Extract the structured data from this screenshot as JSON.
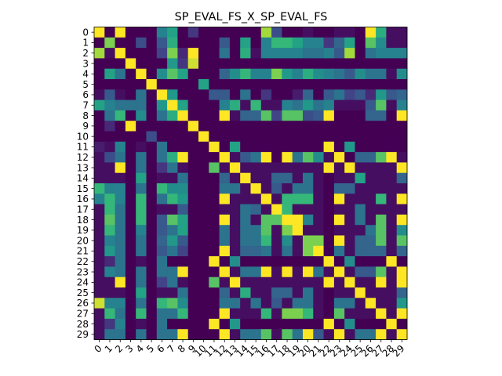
{
  "chart_data": {
    "type": "heatmap",
    "title": "SP_EVAL_FS_X_SP_EVAL_FS",
    "xlabel": "",
    "ylabel": "",
    "x_ticks": [
      "0",
      "1",
      "2",
      "3",
      "4",
      "5",
      "6",
      "7",
      "8",
      "9",
      "10",
      "11",
      "12",
      "13",
      "14",
      "15",
      "16",
      "17",
      "18",
      "19",
      "20",
      "21",
      "22",
      "23",
      "24",
      "25",
      "26",
      "27",
      "28",
      "29"
    ],
    "y_ticks": [
      "0",
      "1",
      "2",
      "3",
      "4",
      "5",
      "6",
      "7",
      "8",
      "9",
      "10",
      "11",
      "12",
      "13",
      "14",
      "15",
      "16",
      "17",
      "18",
      "19",
      "20",
      "21",
      "22",
      "23",
      "24",
      "25",
      "26",
      "27",
      "28",
      "29"
    ],
    "colormap": "viridis",
    "value_range": [
      0,
      1
    ],
    "grid": false,
    "legend": "none",
    "matrix": [
      [
        1,
        0,
        1,
        0,
        0,
        0,
        0.5,
        0.65,
        0,
        0.2,
        0,
        0,
        0,
        0,
        0,
        0,
        0.9,
        0.3,
        0,
        0,
        0.05,
        0,
        0,
        0.05,
        0.05,
        0,
        1,
        0.7,
        0.05,
        0.05
      ],
      [
        0,
        0.85,
        0,
        0,
        0.3,
        0,
        0.35,
        0.7,
        0,
        0,
        0,
        0,
        0.35,
        0,
        0.65,
        0,
        0.5,
        0.75,
        0.75,
        0.65,
        0.5,
        0.5,
        0.2,
        0.4,
        0.65,
        0,
        0.8,
        0.55,
        0.05,
        0.05
      ],
      [
        0.9,
        0.05,
        1,
        0,
        0,
        0,
        0.25,
        0.85,
        0.15,
        1,
        0,
        0,
        0.45,
        0,
        0.7,
        0.05,
        0.5,
        0.5,
        0.5,
        0.5,
        0.45,
        0.45,
        0.5,
        0.35,
        0.9,
        0,
        0.45,
        0.5,
        0.5,
        0.5
      ],
      [
        0,
        0,
        0,
        1,
        0,
        0,
        0,
        0.6,
        0.2,
        0.95,
        0,
        0,
        0,
        0,
        0,
        0,
        0,
        0,
        0,
        0,
        0,
        0,
        0,
        0,
        0,
        0,
        0,
        0,
        0,
        0
      ],
      [
        0,
        0.65,
        0.45,
        0,
        1,
        0,
        0.55,
        0.8,
        0.65,
        0,
        0,
        0,
        0.4,
        0.55,
        0.75,
        0.5,
        0.5,
        0.85,
        0.6,
        0.5,
        0.7,
        0.55,
        0.5,
        0.45,
        0.35,
        0.55,
        0.45,
        0.45,
        0.05,
        0.55
      ],
      [
        0,
        0,
        0,
        0,
        0,
        1,
        0,
        0,
        0,
        0,
        0.65,
        0,
        0,
        0,
        0,
        0,
        0,
        0,
        0,
        0,
        0,
        0,
        0,
        0,
        0,
        0,
        0,
        0,
        0,
        0
      ],
      [
        0.05,
        0.35,
        0.05,
        0,
        0.45,
        0,
        1,
        0.6,
        0,
        0,
        0,
        0.35,
        0.35,
        0,
        0.45,
        0,
        0.2,
        0,
        0,
        0.1,
        0.4,
        0,
        0.35,
        0.45,
        0.25,
        0.35,
        0.15,
        0.6,
        0.35,
        0.4
      ],
      [
        0.65,
        0.5,
        0.45,
        0.45,
        0.45,
        0,
        0.6,
        1,
        0.65,
        0,
        0,
        0,
        0.5,
        0.7,
        0.05,
        0.75,
        0.05,
        0.05,
        0.5,
        0.45,
        0.6,
        0.45,
        0.5,
        0.05,
        0.05,
        0.05,
        0.35,
        0.8,
        0.05,
        0.5
      ],
      [
        0,
        0.45,
        0.75,
        0,
        0.55,
        0,
        0.45,
        0.7,
        1,
        0,
        0,
        0,
        1,
        0.05,
        0.4,
        0.4,
        0.8,
        0.25,
        0.8,
        0.8,
        0.3,
        0.35,
        1,
        0,
        0,
        0,
        0.4,
        0.4,
        0,
        1
      ],
      [
        0,
        0.15,
        0,
        1,
        0,
        0,
        0,
        0,
        0,
        1,
        0,
        0,
        0,
        0,
        0,
        0,
        0,
        0,
        0,
        0,
        0,
        0,
        0,
        0,
        0,
        0,
        0,
        0,
        0,
        0
      ],
      [
        0,
        0,
        0,
        0,
        0,
        0.3,
        0,
        0,
        0,
        0,
        1,
        0,
        0,
        0,
        0,
        0,
        0,
        0,
        0,
        0,
        0,
        0,
        0,
        0,
        0,
        0,
        0,
        0,
        0,
        0
      ],
      [
        0.1,
        0.05,
        0.5,
        0,
        0.05,
        0,
        0.45,
        0,
        0,
        0,
        0,
        1,
        0,
        0.65,
        0,
        0,
        0,
        0,
        0,
        0,
        0,
        0,
        1,
        0,
        0.6,
        0,
        0,
        0,
        0,
        0
      ],
      [
        0.05,
        0.3,
        0.45,
        0,
        0.45,
        0,
        0.45,
        0.7,
        1,
        0,
        0,
        0,
        1,
        0.05,
        0.35,
        0.45,
        1,
        0,
        1,
        0.45,
        0.8,
        0.55,
        0.05,
        1,
        0,
        0.4,
        0.4,
        0.8,
        1,
        0.05
      ],
      [
        0.05,
        0.05,
        1,
        0,
        0.45,
        0,
        0.2,
        0.45,
        0.05,
        0,
        0,
        0.8,
        0.05,
        1,
        0.05,
        0.05,
        0.05,
        0.05,
        0.05,
        0.05,
        0.05,
        0.05,
        1,
        0.05,
        1,
        0.05,
        0.05,
        0.05,
        0.05,
        1
      ],
      [
        0.05,
        0.05,
        0.05,
        0,
        0.65,
        0,
        0.05,
        0.05,
        0.45,
        0,
        0,
        0,
        0.4,
        0.05,
        1,
        0.05,
        0.05,
        0.4,
        0.4,
        0.05,
        0.45,
        0.05,
        0,
        0.05,
        0.05,
        0.65,
        0.05,
        0.05,
        0.05,
        0.4
      ],
      [
        0.75,
        0.5,
        0.5,
        0,
        0.45,
        0,
        0.75,
        0.55,
        0.55,
        0,
        0,
        0,
        0.45,
        0.45,
        0.05,
        1,
        0.05,
        0.35,
        0.05,
        0.45,
        0.45,
        0.05,
        0,
        0.4,
        0.4,
        0.05,
        0.05,
        0.05,
        0.05,
        0.05
      ],
      [
        0.5,
        0.75,
        0.5,
        0,
        0.75,
        0,
        0.45,
        0.75,
        0.6,
        0,
        0,
        0,
        1,
        0.05,
        0.05,
        0.05,
        1,
        0.05,
        0.75,
        0.75,
        0.75,
        0.05,
        0,
        1,
        0.05,
        0.05,
        0.05,
        0.75,
        0.05,
        1
      ],
      [
        0.05,
        0.75,
        0.45,
        0,
        0.75,
        0,
        0.05,
        0.05,
        0.35,
        0,
        0,
        0,
        0.05,
        0.05,
        0.45,
        0.4,
        0.05,
        1,
        0.75,
        0.05,
        0.05,
        0.05,
        0,
        0.05,
        0.05,
        0.45,
        0.05,
        0.05,
        0.05,
        0.05
      ],
      [
        0.05,
        0.8,
        0.45,
        0,
        0.75,
        0,
        0.35,
        0.8,
        0.65,
        0,
        0,
        0,
        1,
        0.05,
        0.45,
        0.05,
        0.8,
        0.8,
        1,
        1,
        0.5,
        0.05,
        0,
        1,
        0.05,
        0.45,
        0.05,
        0.8,
        0.05,
        1
      ],
      [
        0.05,
        0.75,
        0.45,
        0,
        0.5,
        0,
        0.35,
        0.45,
        0.65,
        0,
        0,
        0,
        0.45,
        0.05,
        0.45,
        0.45,
        0.8,
        0.05,
        0.85,
        1,
        0.05,
        0.05,
        0,
        0.05,
        0.05,
        0.05,
        0.45,
        0.8,
        0.05,
        0.55
      ],
      [
        0.05,
        0.5,
        0.45,
        0,
        0.45,
        0,
        0.4,
        0.6,
        0.35,
        0,
        0,
        0,
        0.45,
        0.05,
        0.45,
        0.45,
        0.75,
        0.05,
        0.55,
        0.05,
        0.85,
        0.85,
        0,
        1,
        0.05,
        0.4,
        0.4,
        0.8,
        0.05,
        0.8
      ],
      [
        0.05,
        0.6,
        0.45,
        0,
        0.45,
        0,
        0.35,
        0.45,
        0.25,
        0,
        0,
        0,
        1,
        0.05,
        0.4,
        0.4,
        0.45,
        0.05,
        0.45,
        0.05,
        0.85,
        1,
        0,
        0.45,
        0.05,
        0.4,
        0.4,
        0.4,
        0.05,
        0.4
      ],
      [
        0.05,
        0.15,
        0.45,
        0,
        0.05,
        0,
        0.45,
        0,
        0,
        0,
        0,
        1,
        0,
        0.55,
        0,
        0,
        0,
        0,
        0,
        0,
        0,
        0,
        1,
        0,
        0.55,
        0,
        0,
        0,
        1,
        0
      ],
      [
        0.05,
        0.5,
        0.45,
        0,
        0.45,
        0,
        0.45,
        0.45,
        1,
        0,
        0,
        0,
        1,
        0.05,
        0.45,
        0.45,
        1,
        0.05,
        1,
        0.05,
        1,
        0.45,
        0.05,
        1,
        0.05,
        0.35,
        0.35,
        0.8,
        0.05,
        1
      ],
      [
        0.05,
        0.05,
        1,
        0,
        0.45,
        0,
        0.25,
        0.45,
        0.05,
        0,
        0,
        0.8,
        0.05,
        1,
        0.05,
        0.05,
        0.05,
        0.05,
        0.05,
        0.05,
        0.05,
        0.05,
        1,
        0.05,
        1,
        0.05,
        0.05,
        1,
        0.05,
        1
      ],
      [
        0.05,
        0.05,
        0.05,
        0,
        0.65,
        0,
        0.05,
        0.05,
        0.45,
        0,
        0,
        0,
        0.4,
        0.05,
        0.7,
        0.05,
        0.05,
        0.4,
        0.4,
        0.05,
        0.45,
        0.05,
        0,
        0.05,
        0.05,
        1,
        0.05,
        0.05,
        0.05,
        0.4
      ],
      [
        0.95,
        0.5,
        0.5,
        0,
        0.45,
        0,
        0.75,
        0.8,
        0.55,
        0,
        0,
        0,
        0.45,
        0.45,
        0.05,
        0.45,
        0.05,
        0.35,
        0.05,
        0.45,
        0.45,
        0.05,
        0,
        0.45,
        0.45,
        0.05,
        1,
        0.05,
        0.05,
        0.6
      ],
      [
        0.05,
        0.75,
        0.45,
        0,
        0.75,
        0,
        0.45,
        0.45,
        0.75,
        0,
        0,
        0,
        1,
        0.05,
        0.05,
        0.05,
        0.75,
        0.05,
        0.85,
        0.85,
        0.75,
        0.05,
        0,
        0.8,
        0.05,
        0.05,
        0.05,
        1,
        0.05,
        1
      ],
      [
        0.05,
        0.2,
        0.5,
        0,
        0.05,
        0,
        0.45,
        0,
        0,
        0,
        0,
        1,
        0,
        0.6,
        0,
        0,
        0,
        0,
        0,
        0,
        0,
        0,
        1,
        0,
        0.55,
        0,
        0,
        0,
        1,
        0
      ],
      [
        0.05,
        0.45,
        0.45,
        0,
        0.45,
        0,
        0.45,
        0.45,
        1,
        0,
        0,
        0,
        1,
        0.05,
        0.45,
        0.45,
        0.8,
        0.05,
        0.8,
        0.45,
        1,
        0.35,
        0.05,
        1,
        0.05,
        0.45,
        0.45,
        1,
        0.05,
        1
      ]
    ]
  }
}
